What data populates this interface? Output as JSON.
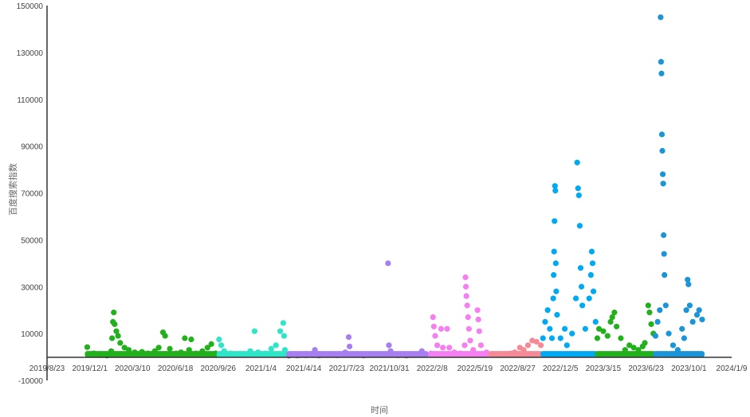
{
  "chart_data": {
    "type": "scatter",
    "title": "",
    "xlabel": "时间",
    "ylabel": "百度搜索指数",
    "ylim": [
      -10000,
      150000
    ],
    "y_ticks": [
      -10000,
      10000,
      30000,
      50000,
      70000,
      90000,
      110000,
      130000,
      150000
    ],
    "x_ticks": [
      "2019/8/23",
      "2019/12/1",
      "2020/3/10",
      "2020/6/18",
      "2020/9/26",
      "2021/1/4",
      "2021/4/14",
      "2021/7/23",
      "2021/10/31",
      "2022/2/8",
      "2022/5/19",
      "2022/8/27",
      "2022/12/5",
      "2023/3/15",
      "2023/6/23",
      "2023/10/1",
      "2024/1/9"
    ],
    "xlim": [
      "2019/8/23",
      "2024/1/9"
    ],
    "grid": false,
    "legend": "none",
    "series": [
      {
        "color": "#22b01c",
        "points": [
          [
            "2019/11/25",
            4200
          ],
          [
            "2019/12/10",
            1500
          ],
          [
            "2019/12/25",
            800
          ],
          [
            "2020/1/10",
            600
          ],
          [
            "2020/1/20",
            2500
          ],
          [
            "2020/1/22",
            8000
          ],
          [
            "2020/1/24",
            15000
          ],
          [
            "2020/1/26",
            19000
          ],
          [
            "2020/1/28",
            14000
          ],
          [
            "2020/2/1",
            11000
          ],
          [
            "2020/2/5",
            9000
          ],
          [
            "2020/2/10",
            6000
          ],
          [
            "2020/2/20",
            4000
          ],
          [
            "2020/3/1",
            3000
          ],
          [
            "2020/3/15",
            2000
          ],
          [
            "2020/4/1",
            2200
          ],
          [
            "2020/4/15",
            1500
          ],
          [
            "2020/5/1",
            2500
          ],
          [
            "2020/5/10",
            4000
          ],
          [
            "2020/5/20",
            10500
          ],
          [
            "2020/5/25",
            9000
          ],
          [
            "2020/6/5",
            3500
          ],
          [
            "2020/6/20",
            1500
          ],
          [
            "2020/7/1",
            2000
          ],
          [
            "2020/7/10",
            8000
          ],
          [
            "2020/7/20",
            3000
          ],
          [
            "2020/7/25",
            7500
          ],
          [
            "2020/8/5",
            1500
          ],
          [
            "2020/8/20",
            2500
          ],
          [
            "2020/9/1",
            4000
          ],
          [
            "2020/9/10",
            5500
          ],
          [
            "2020/9/20",
            1500
          ]
        ]
      },
      {
        "color": "#2ee5c8",
        "points": [
          [
            "2020/9/28",
            7500
          ],
          [
            "2020/10/3",
            5000
          ],
          [
            "2020/10/10",
            2500
          ],
          [
            "2020/10/25",
            1500
          ],
          [
            "2020/11/10",
            1200
          ],
          [
            "2020/11/25",
            1000
          ],
          [
            "2020/12/10",
            2500
          ],
          [
            "2020/12/20",
            11000
          ],
          [
            "2020/12/28",
            2000
          ],
          [
            "2021/1/15",
            1500
          ],
          [
            "2021/1/28",
            3500
          ],
          [
            "2021/2/8",
            5000
          ],
          [
            "2021/2/18",
            11000
          ],
          [
            "2021/2/25",
            14500
          ],
          [
            "2021/2/27",
            9000
          ],
          [
            "2021/3/1",
            3000
          ]
        ]
      },
      {
        "color": "#a77ff0",
        "points": [
          [
            "2021/3/10",
            500
          ],
          [
            "2021/3/30",
            600
          ],
          [
            "2021/4/20",
            700
          ],
          [
            "2021/5/10",
            3000
          ],
          [
            "2021/5/20",
            600
          ],
          [
            "2021/6/10",
            800
          ],
          [
            "2021/7/1",
            700
          ],
          [
            "2021/7/20",
            2000
          ],
          [
            "2021/7/28",
            8500
          ],
          [
            "2021/7/30",
            4500
          ],
          [
            "2021/8/10",
            800
          ],
          [
            "2021/9/1",
            600
          ],
          [
            "2021/9/25",
            800
          ],
          [
            "2021/10/15",
            1000
          ],
          [
            "2021/10/28",
            40000
          ],
          [
            "2021/10/30",
            5000
          ],
          [
            "2021/11/3",
            2500
          ],
          [
            "2021/11/20",
            700
          ],
          [
            "2021/12/10",
            600
          ],
          [
            "2022/1/1",
            800
          ],
          [
            "2022/1/15",
            2500
          ],
          [
            "2022/1/25",
            900
          ]
        ]
      },
      {
        "color": "#f57ef0",
        "points": [
          [
            "2022/2/5",
            1500
          ],
          [
            "2022/2/10",
            17000
          ],
          [
            "2022/2/12",
            13000
          ],
          [
            "2022/2/15",
            9000
          ],
          [
            "2022/2/20",
            5000
          ],
          [
            "2022/3/1",
            12000
          ],
          [
            "2022/3/5",
            4000
          ],
          [
            "2022/3/15",
            12000
          ],
          [
            "2022/3/20",
            4000
          ],
          [
            "2022/4/1",
            2000
          ],
          [
            "2022/4/15",
            1500
          ],
          [
            "2022/4/25",
            5000
          ],
          [
            "2022/4/27",
            34000
          ],
          [
            "2022/4/28",
            30000
          ],
          [
            "2022/4/29",
            26000
          ],
          [
            "2022/5/1",
            22000
          ],
          [
            "2022/5/3",
            17000
          ],
          [
            "2022/5/5",
            12000
          ],
          [
            "2022/5/8",
            7000
          ],
          [
            "2022/5/15",
            3000
          ],
          [
            "2022/5/25",
            20000
          ],
          [
            "2022/5/27",
            16000
          ],
          [
            "2022/5/29",
            11000
          ],
          [
            "2022/6/2",
            5000
          ],
          [
            "2022/6/15",
            2000
          ]
        ]
      },
      {
        "color": "#f58a96",
        "points": [
          [
            "2022/6/25",
            1000
          ],
          [
            "2022/7/10",
            800
          ],
          [
            "2022/7/25",
            1000
          ],
          [
            "2022/8/10",
            1500
          ],
          [
            "2022/8/20",
            2000
          ],
          [
            "2022/9/1",
            4000
          ],
          [
            "2022/9/10",
            3000
          ],
          [
            "2022/9/20",
            5000
          ],
          [
            "2022/9/30",
            7000
          ],
          [
            "2022/10/10",
            6500
          ],
          [
            "2022/10/20",
            5000
          ]
        ]
      },
      {
        "color": "#00aaf2",
        "points": [
          [
            "2022/10/25",
            8000
          ],
          [
            "2022/10/30",
            15000
          ],
          [
            "2022/11/5",
            20000
          ],
          [
            "2022/11/10",
            12000
          ],
          [
            "2022/11/15",
            8000
          ],
          [
            "2022/11/18",
            25000
          ],
          [
            "2022/11/19",
            35000
          ],
          [
            "2022/11/20",
            45000
          ],
          [
            "2022/11/21",
            58000
          ],
          [
            "2022/11/22",
            73000
          ],
          [
            "2022/11/23",
            71000
          ],
          [
            "2022/11/24",
            40000
          ],
          [
            "2022/11/25",
            28000
          ],
          [
            "2022/11/27",
            18000
          ],
          [
            "2022/12/5",
            8000
          ],
          [
            "2022/12/15",
            12000
          ],
          [
            "2022/12/20",
            5000
          ],
          [
            "2023/1/1",
            10000
          ],
          [
            "2023/1/10",
            25000
          ],
          [
            "2023/1/13",
            83000
          ],
          [
            "2023/1/15",
            72000
          ],
          [
            "2023/1/17",
            69000
          ],
          [
            "2023/1/19",
            56000
          ],
          [
            "2023/1/21",
            38000
          ],
          [
            "2023/1/23",
            30000
          ],
          [
            "2023/1/25",
            22000
          ],
          [
            "2023/2/1",
            12000
          ],
          [
            "2023/2/10",
            25000
          ],
          [
            "2023/2/14",
            35000
          ],
          [
            "2023/2/16",
            45000
          ],
          [
            "2023/2/18",
            40000
          ],
          [
            "2023/2/20",
            28000
          ],
          [
            "2023/2/25",
            15000
          ]
        ]
      },
      {
        "color": "#22b01c",
        "points": [
          [
            "2023/3/1",
            8000
          ],
          [
            "2023/3/5",
            12000
          ],
          [
            "2023/3/15",
            11000
          ],
          [
            "2023/3/25",
            9000
          ],
          [
            "2023/4/1",
            15000
          ],
          [
            "2023/4/5",
            17000
          ],
          [
            "2023/4/10",
            19000
          ],
          [
            "2023/4/15",
            13000
          ],
          [
            "2023/4/25",
            8000
          ],
          [
            "2023/5/5",
            3000
          ],
          [
            "2023/5/15",
            5000
          ],
          [
            "2023/5/25",
            4000
          ],
          [
            "2023/6/5",
            3000
          ],
          [
            "2023/6/15",
            4500
          ],
          [
            "2023/6/20",
            6000
          ],
          [
            "2023/6/28",
            22000
          ],
          [
            "2023/7/1",
            19000
          ],
          [
            "2023/7/5",
            14000
          ],
          [
            "2023/7/10",
            10000
          ]
        ]
      },
      {
        "color": "#1b94d8",
        "points": [
          [
            "2023/7/15",
            9000
          ],
          [
            "2023/7/20",
            15000
          ],
          [
            "2023/7/25",
            20000
          ],
          [
            "2023/7/27",
            145000
          ],
          [
            "2023/7/28",
            126000
          ],
          [
            "2023/7/29",
            121000
          ],
          [
            "2023/7/30",
            95000
          ],
          [
            "2023/7/31",
            88000
          ],
          [
            "2023/8/1",
            78000
          ],
          [
            "2023/8/2",
            74000
          ],
          [
            "2023/8/3",
            52000
          ],
          [
            "2023/8/4",
            44000
          ],
          [
            "2023/8/5",
            35000
          ],
          [
            "2023/8/8",
            22000
          ],
          [
            "2023/8/15",
            10000
          ],
          [
            "2023/8/25",
            5000
          ],
          [
            "2023/9/5",
            3000
          ],
          [
            "2023/9/15",
            12000
          ],
          [
            "2023/9/20",
            8000
          ],
          [
            "2023/9/25",
            20000
          ],
          [
            "2023/9/28",
            33000
          ],
          [
            "2023/9/30",
            31000
          ],
          [
            "2023/10/3",
            22000
          ],
          [
            "2023/10/10",
            15000
          ],
          [
            "2023/10/20",
            18000
          ],
          [
            "2023/10/25",
            20000
          ],
          [
            "2023/11/1",
            16000
          ]
        ]
      }
    ]
  }
}
